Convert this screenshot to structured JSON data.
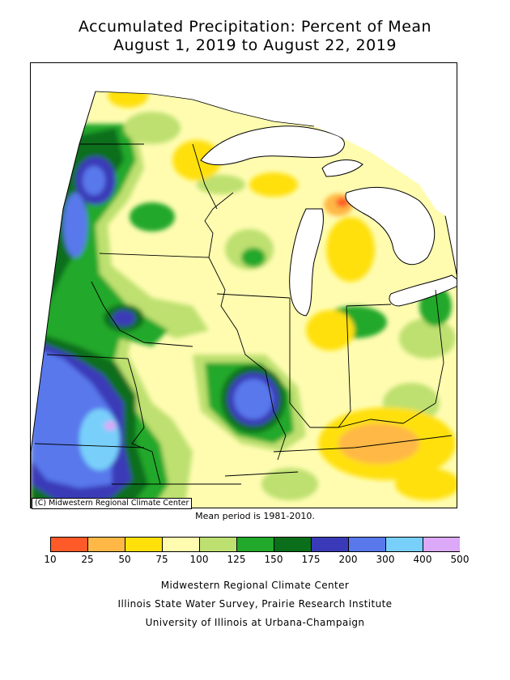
{
  "title": {
    "line1": "Accumulated Precipitation: Percent of Mean",
    "line2": "August 1, 2019 to August 22, 2019"
  },
  "map": {
    "copyright": "(C) Midwestern Regional Climate Center",
    "background_color": "#fffcb0",
    "lake_color": "#ffffff"
  },
  "mean_period": "Mean period is 1981-2010.",
  "legend": {
    "breaks": [
      "10",
      "25",
      "50",
      "75",
      "100",
      "125",
      "150",
      "175",
      "200",
      "300",
      "400",
      "500"
    ],
    "colors": [
      "#ff5a28",
      "#ffb845",
      "#ffe00a",
      "#fffcb0",
      "#bde070",
      "#22a82a",
      "#0a6e1a",
      "#3a3ab8",
      "#5878ec",
      "#78d0fa",
      "#dca8f8"
    ]
  },
  "credits": {
    "line1": "Midwestern Regional Climate Center",
    "line2": "Illinois State Water Survey, Prairie Research Institute",
    "line3": "University of Illinois at Urbana-Champaign"
  }
}
